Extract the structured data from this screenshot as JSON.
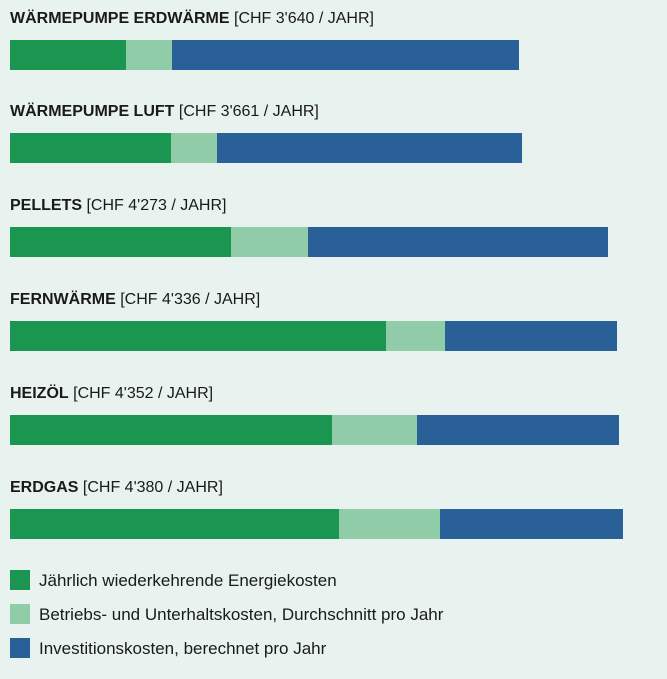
{
  "chart_data": {
    "type": "bar",
    "orientation": "horizontal",
    "stacked": true,
    "grid": false,
    "legend_position": "bottom",
    "categories": [
      "WÄRMEPUMPE ERDWÄRME",
      "WÄRMEPUMPE LUFT",
      "PELLETS",
      "FERNWÄRME",
      "HEIZÖL",
      "ERDGAS"
    ],
    "totals_text": [
      "[CHF 3'640 / JAHR]",
      "[CHF 3'661 / JAHR]",
      "[CHF 4'273 / JAHR]",
      "[CHF 4'336 / JAHR]",
      "[CHF 4'352 / JAHR]",
      "[CHF 4'380 / JAHR]"
    ],
    "totals": [
      3640,
      3661,
      4273,
      4336,
      4352,
      4380
    ],
    "xlim": [
      0,
      4574
    ],
    "series": [
      {
        "name": "Jährlich wiederkehrende Energiekosten",
        "color": "#1a9650",
        "values": [
          830,
          1150,
          1580,
          2690,
          2300,
          2350
        ]
      },
      {
        "name": "Betriebs- und Unterhaltskosten, Durchschnitt pro Jahr",
        "color": "#8fcca7",
        "values": [
          330,
          330,
          550,
          420,
          610,
          720
        ]
      },
      {
        "name": "Investitionskosten, berechnet pro Jahr",
        "color": "#2a6098",
        "values": [
          2480,
          2181,
          2143,
          1226,
          1442,
          1310
        ]
      }
    ]
  }
}
